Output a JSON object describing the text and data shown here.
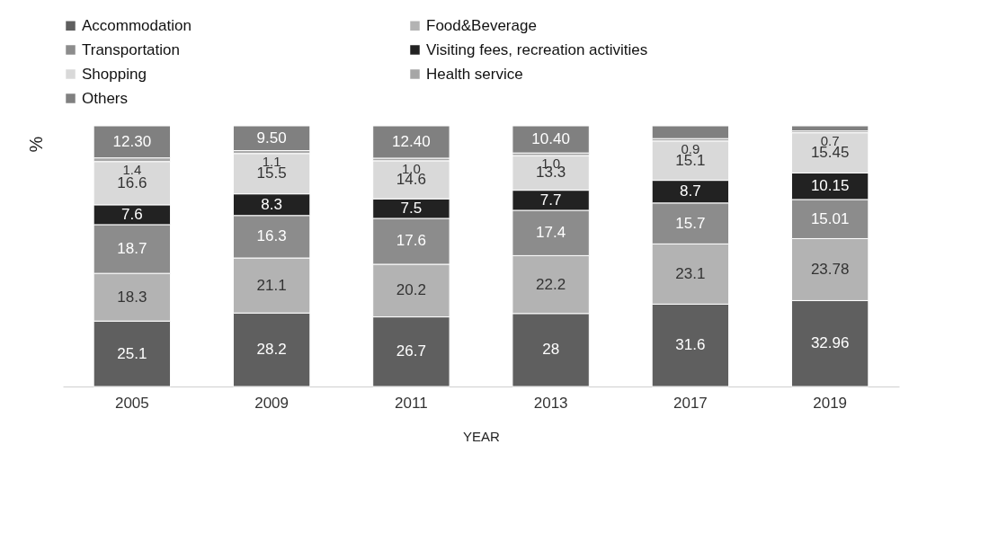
{
  "chart_data": {
    "type": "bar",
    "stacked": true,
    "xlabel": "YEAR",
    "ylabel": "%",
    "categories": [
      "2005",
      "2009",
      "2011",
      "2013",
      "2017",
      "2019"
    ],
    "ylim": [
      0,
      100
    ],
    "tick_labels": "x",
    "legend": "top",
    "grid": false,
    "series": [
      {
        "name": "Accommodation",
        "color": "#5f5f5f",
        "values": [
          25.1,
          28.2,
          26.7,
          28,
          31.6,
          32.96
        ],
        "value_labels": [
          "25.1",
          "28.2",
          "26.7",
          "28",
          "31.6",
          "32.96"
        ]
      },
      {
        "name": "Food&Beverage",
        "color": "#b3b3b3",
        "values": [
          18.3,
          21.1,
          20.2,
          22.2,
          23.1,
          23.78
        ],
        "value_labels": [
          "18.3",
          "21.1",
          "20.2",
          "22.2",
          "23.1",
          "23.78"
        ]
      },
      {
        "name": "Transportation",
        "color": "#8c8c8c",
        "values": [
          18.7,
          16.3,
          17.6,
          17.4,
          15.7,
          15.01
        ],
        "value_labels": [
          "18.7",
          "16.3",
          "17.6",
          "17.4",
          "15.7",
          "15.01"
        ]
      },
      {
        "name": "Visiting fees, recreation activities",
        "color": "#222222",
        "values": [
          7.6,
          8.3,
          7.5,
          7.7,
          8.7,
          10.15
        ],
        "value_labels": [
          "7.6",
          "8.3",
          "7.5",
          "7.7",
          "8.7",
          "10.15"
        ]
      },
      {
        "name": "Shopping",
        "color": "#d9d9d9",
        "values": [
          16.6,
          15.5,
          14.6,
          13.3,
          15.1,
          15.45
        ],
        "value_labels": [
          "16.6",
          "15.5",
          "14.6",
          "13.3",
          "15.1",
          "15.45"
        ]
      },
      {
        "name": "Health service",
        "color": "#a6a6a6",
        "values": [
          1.4,
          1.1,
          1.0,
          1.0,
          0.9,
          0.7
        ],
        "value_labels": [
          "1.4",
          "1.1",
          "1.0",
          "1.0",
          "0.9",
          "0.7"
        ]
      },
      {
        "name": "Others",
        "color": "#808080",
        "values": [
          12.3,
          9.5,
          12.4,
          10.4,
          4.9,
          1.95
        ],
        "value_labels": [
          "12.30",
          "9.50",
          "12.40",
          "10.40",
          null,
          null
        ]
      }
    ]
  }
}
